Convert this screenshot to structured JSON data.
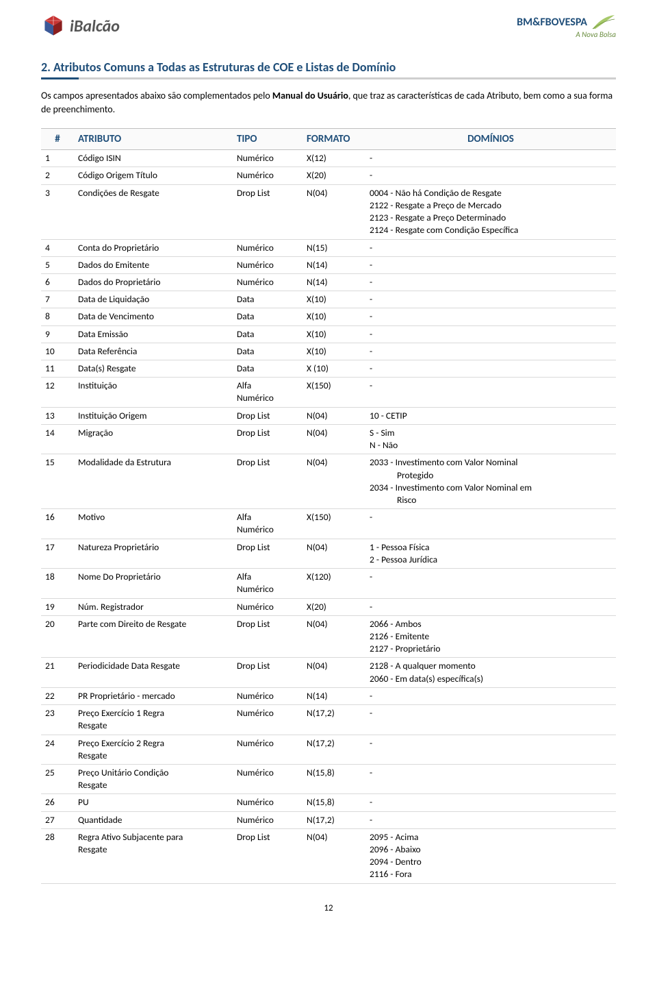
{
  "header": {
    "logo_left_text": "iBalcão",
    "logo_right_top": "BM&FBOVESPA",
    "logo_right_sub": "A Nova Bolsa"
  },
  "section_title": "2. Atributos Comuns a Todas as Estruturas de COE e Listas de Domínio",
  "intro_pre": "Os campos apresentados abaixo são complementados pelo ",
  "intro_bold": "Manual do Usuário",
  "intro_post": ", que traz as características de cada Atributo, bem como a sua forma de preenchimento.",
  "table": {
    "headers": {
      "num": "#",
      "attr": "ATRIBUTO",
      "tipo": "TIPO",
      "fmt": "FORMATO",
      "dom": "DOMÍNIOS"
    },
    "rows": [
      {
        "n": "1",
        "attr": "Código ISIN",
        "tipo": "Numérico",
        "fmt": "X(12)",
        "dom": "-"
      },
      {
        "n": "2",
        "attr": "Código Origem Título",
        "tipo": "Numérico",
        "fmt": "X(20)",
        "dom": "-"
      },
      {
        "n": "3",
        "attr": "Condições de Resgate",
        "tipo": "Drop List",
        "fmt": "N(04)",
        "dom": "0004 - Não há Condição de Resgate\n2122 - Resgate a Preço de Mercado\n2123 - Resgate a Preço Determinado\n2124 - Resgate com Condição Específica"
      },
      {
        "n": "4",
        "attr": "Conta do Proprietário",
        "tipo": "Numérico",
        "fmt": "N(15)",
        "dom": "-"
      },
      {
        "n": "5",
        "attr": "Dados do Emitente",
        "tipo": "Numérico",
        "fmt": "N(14)",
        "dom": "-"
      },
      {
        "n": "6",
        "attr": "Dados do Proprietário",
        "tipo": "Numérico",
        "fmt": "N(14)",
        "dom": "-"
      },
      {
        "n": "7",
        "attr": "Data de Liquidação",
        "tipo": "Data",
        "fmt": "X(10)",
        "dom": "-"
      },
      {
        "n": "8",
        "attr": "Data de Vencimento",
        "tipo": "Data",
        "fmt": "X(10)",
        "dom": "-"
      },
      {
        "n": "9",
        "attr": "Data Emissão",
        "tipo": "Data",
        "fmt": "X(10)",
        "dom": "-"
      },
      {
        "n": "10",
        "attr": "Data Referência",
        "tipo": "Data",
        "fmt": "X(10)",
        "dom": "-"
      },
      {
        "n": "11",
        "attr": "Data(s) Resgate",
        "tipo": "Data",
        "fmt": "X (10)",
        "dom": "-"
      },
      {
        "n": "12",
        "attr": "Instituição",
        "tipo": "Alfa\nNumérico",
        "fmt": "X(150)",
        "dom": "-"
      },
      {
        "n": "13",
        "attr": "Instituição Origem",
        "tipo": "Drop List",
        "fmt": "N(04)",
        "dom": "10 - CETIP"
      },
      {
        "n": "14",
        "attr": "Migração",
        "tipo": "Drop List",
        "fmt": "N(04)",
        "dom": "S - Sim\nN - Não"
      },
      {
        "n": "15",
        "attr": "Modalidade da Estrutura",
        "tipo": "Drop List",
        "fmt": "N(04)",
        "dom_lines": [
          "2033 - Investimento com Valor Nominal",
          "       Protegido",
          "2034 - Investimento com Valor Nominal em",
          "       Risco"
        ]
      },
      {
        "n": "16",
        "attr": "Motivo",
        "tipo": "Alfa\nNumérico",
        "fmt": "X(150)",
        "dom": "-"
      },
      {
        "n": "17",
        "attr": "Natureza Proprietário",
        "tipo": "Drop List",
        "fmt": "N(04)",
        "dom": "1 - Pessoa Física\n2 - Pessoa Jurídica"
      },
      {
        "n": "18",
        "attr": "Nome Do Proprietário",
        "tipo": "Alfa\nNumérico",
        "fmt": "X(120)",
        "dom": "-"
      },
      {
        "n": "19",
        "attr": "Núm. Registrador",
        "tipo": "Numérico",
        "fmt": "X(20)",
        "dom": "-"
      },
      {
        "n": "20",
        "attr": "Parte com Direito de Resgate",
        "tipo": "Drop List",
        "fmt": "N(04)",
        "dom": "2066 - Ambos\n2126 - Emitente\n2127 - Proprietário"
      },
      {
        "n": "21",
        "attr": "Periodicidade Data Resgate",
        "tipo": "Drop List",
        "fmt": "N(04)",
        "dom": "2128 - A qualquer momento\n2060 - Em data(s) específica(s)"
      },
      {
        "n": "22",
        "attr": "PR Proprietário - mercado",
        "tipo": "Numérico",
        "fmt": "N(14)",
        "dom": "-"
      },
      {
        "n": "23",
        "attr": "Preço Exercício 1 Regra\nResgate",
        "tipo": "Numérico",
        "fmt": "N(17,2)",
        "dom": "-"
      },
      {
        "n": "24",
        "attr": "Preço Exercício 2 Regra\nResgate",
        "tipo": "Numérico",
        "fmt": "N(17,2)",
        "dom": "-"
      },
      {
        "n": "25",
        "attr": "Preço Unitário Condição\nResgate",
        "tipo": "Numérico",
        "fmt": "N(15,8)",
        "dom": "-"
      },
      {
        "n": "26",
        "attr": "PU",
        "tipo": "Numérico",
        "fmt": "N(15,8)",
        "dom": "-"
      },
      {
        "n": "27",
        "attr": "Quantidade",
        "tipo": "Numérico",
        "fmt": "N(17,2)",
        "dom": "-"
      },
      {
        "n": "28",
        "attr": "Regra Ativo Subjacente para\nResgate",
        "tipo": "Drop List",
        "fmt": "N(04)",
        "dom": "2095 - Acima\n2096 - Abaixo\n2094 - Dentro\n2116 - Fora"
      }
    ]
  },
  "page_number": "12"
}
